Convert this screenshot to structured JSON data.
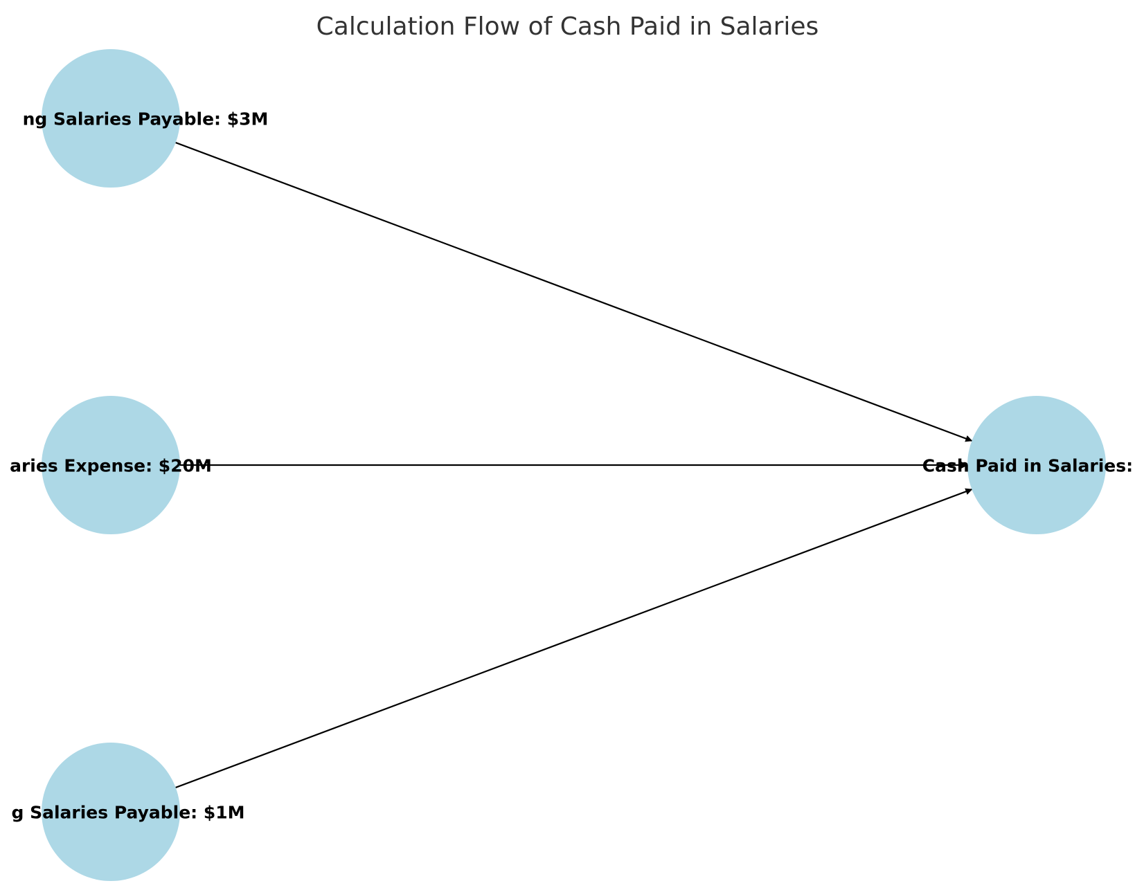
{
  "title": "Calculation Flow of Cash Paid in Salaries",
  "colors": {
    "node_fill": "#add8e6",
    "edge": "#000000",
    "label": "#000000",
    "title": "#333333",
    "background": "#ffffff"
  },
  "nodes": [
    {
      "id": "beginning",
      "label": "ng Salaries Payable: $3M"
    },
    {
      "id": "expense",
      "label": "aries Expense: $20M"
    },
    {
      "id": "ending",
      "label": "g Salaries Payable: $1M"
    },
    {
      "id": "cash",
      "label": "Cash Paid in Salaries: $"
    }
  ],
  "edges": [
    {
      "from": "beginning",
      "to": "cash"
    },
    {
      "from": "expense",
      "to": "cash"
    },
    {
      "from": "ending",
      "to": "cash"
    }
  ]
}
